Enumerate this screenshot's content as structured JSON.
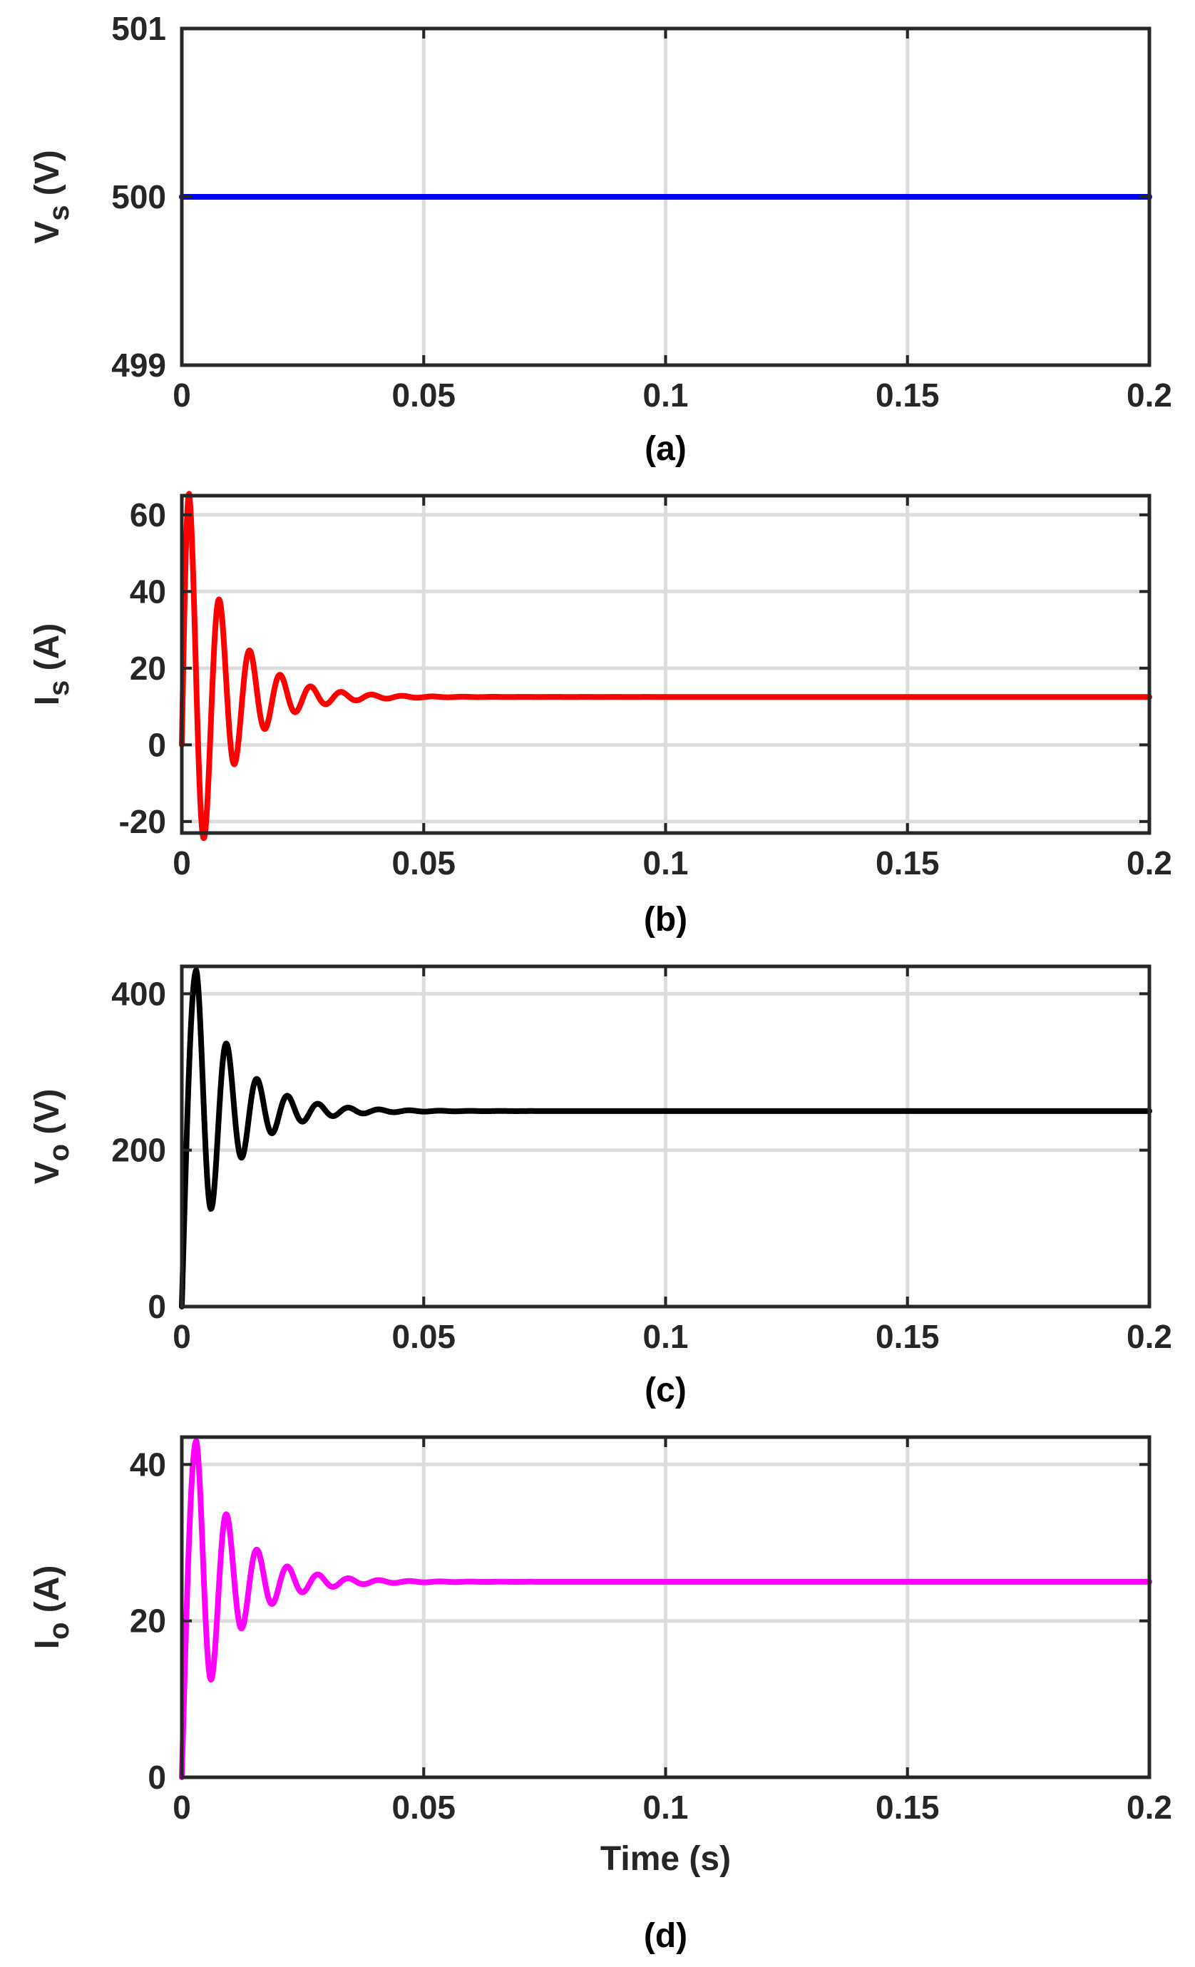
{
  "chart_data": [
    {
      "type": "line",
      "caption": "(a)",
      "ylabel_main": "V",
      "ylabel_sub": "s",
      "ylabel_unit": "(V)",
      "xlabel": "",
      "xlim": [
        0,
        0.2
      ],
      "ylim": [
        499,
        501
      ],
      "xticks": [
        0,
        0.05,
        0.1,
        0.15,
        0.2
      ],
      "xtick_labels": [
        "0",
        "0.05",
        "0.1",
        "0.15",
        "0.2"
      ],
      "yticks": [
        499,
        500,
        501
      ],
      "ytick_labels": [
        "499",
        "500",
        "501"
      ],
      "grid": true,
      "series": [
        {
          "color": "#0000ff",
          "final_value": 500,
          "initial_value": 500,
          "peak_time": 0,
          "osc_period": 0.0063,
          "first_overshoot": 0,
          "decay_time": 0.008
        }
      ]
    },
    {
      "type": "line",
      "caption": "(b)",
      "ylabel_main": "I",
      "ylabel_sub": "s",
      "ylabel_unit": "(A)",
      "xlabel": "",
      "xlim": [
        0,
        0.2
      ],
      "ylim": [
        -23,
        65
      ],
      "xticks": [
        0,
        0.05,
        0.1,
        0.15,
        0.2
      ],
      "xtick_labels": [
        "0",
        "0.05",
        "0.1",
        "0.15",
        "0.2"
      ],
      "yticks": [
        -20,
        0,
        20,
        40,
        60
      ],
      "ytick_labels": [
        "-20",
        "0",
        "20",
        "40",
        "60"
      ],
      "grid": true,
      "series": [
        {
          "color": "#ff0000",
          "final_value": 12.5,
          "initial_value": 0,
          "peak_time": 0.0015,
          "osc_period": 0.0063,
          "first_overshoot": 53,
          "decay_time": 0.0085
        }
      ]
    },
    {
      "type": "line",
      "caption": "(c)",
      "ylabel_main": "V",
      "ylabel_sub": "o",
      "ylabel_unit": "(V)",
      "xlabel": "",
      "xlim": [
        0,
        0.2
      ],
      "ylim": [
        0,
        435
      ],
      "xticks": [
        0,
        0.05,
        0.1,
        0.15,
        0.2
      ],
      "xtick_labels": [
        "0",
        "0.05",
        "0.1",
        "0.15",
        "0.2"
      ],
      "yticks": [
        0,
        200,
        400
      ],
      "ytick_labels": [
        "0",
        "200",
        "400"
      ],
      "grid": true,
      "series": [
        {
          "color": "#000000",
          "final_value": 250,
          "initial_value": 0,
          "peak_time": 0.003,
          "osc_period": 0.0063,
          "first_overshoot": 180,
          "decay_time": 0.0085
        }
      ]
    },
    {
      "type": "line",
      "caption": "(d)",
      "ylabel_main": "I",
      "ylabel_sub": "o",
      "ylabel_unit": "(A)",
      "xlabel": "Time (s)",
      "xlim": [
        0,
        0.2
      ],
      "ylim": [
        0,
        43.5
      ],
      "xticks": [
        0,
        0.05,
        0.1,
        0.15,
        0.2
      ],
      "xtick_labels": [
        "0",
        "0.05",
        "0.1",
        "0.15",
        "0.2"
      ],
      "yticks": [
        0,
        20,
        40
      ],
      "ytick_labels": [
        "0",
        "20",
        "40"
      ],
      "grid": true,
      "series": [
        {
          "color": "#ff00ff",
          "final_value": 25,
          "initial_value": 0,
          "peak_time": 0.003,
          "osc_period": 0.0063,
          "first_overshoot": 18,
          "decay_time": 0.0085
        }
      ]
    }
  ]
}
